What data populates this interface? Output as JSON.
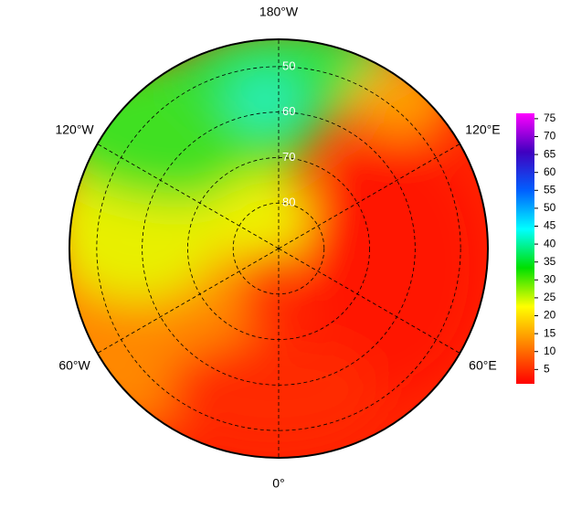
{
  "map": {
    "longitude_labels": [
      {
        "value": -180,
        "label": "180°W"
      },
      {
        "value": -120,
        "label": "120°W"
      },
      {
        "value": 120,
        "label": "120°E"
      },
      {
        "value": -60,
        "label": "60°W"
      },
      {
        "value": 60,
        "label": "60°E"
      },
      {
        "value": 0,
        "label": "0°"
      }
    ],
    "latitude_ticks": [
      50,
      60,
      70,
      80
    ],
    "latitude_lim": [
      44,
      90
    ],
    "colorbar": {
      "lim": [
        1,
        76.5
      ],
      "ticks": [
        5,
        10,
        15,
        20,
        25,
        30,
        35,
        40,
        45,
        50,
        55,
        60,
        65,
        70,
        75
      ],
      "colors": [
        "#ff0000",
        "#ff8000",
        "#ffff00",
        "#00e000",
        "#00ffff",
        "#0060ff",
        "#4000c0",
        "#ff00ff"
      ]
    }
  }
}
